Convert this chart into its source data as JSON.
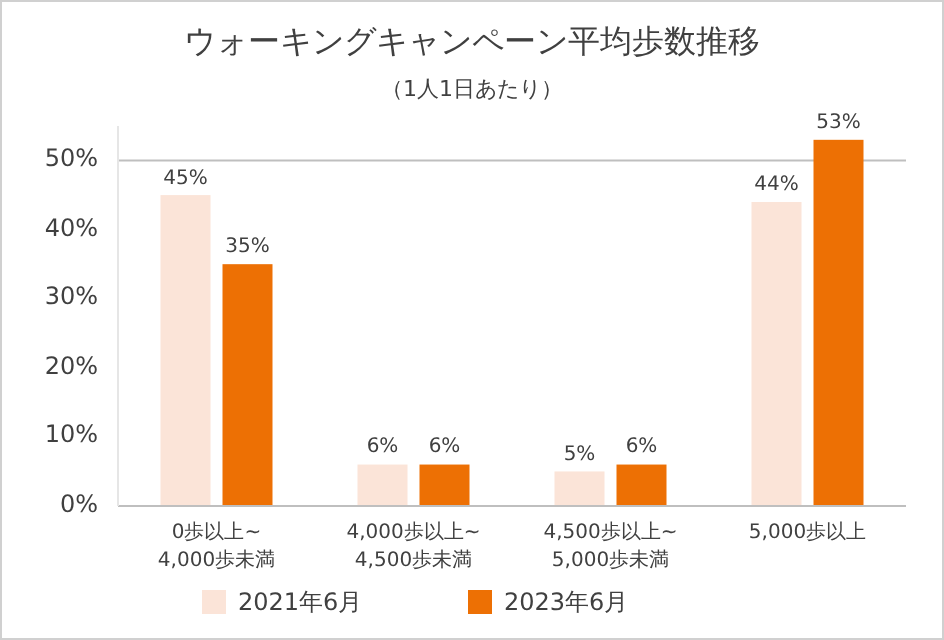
{
  "chart_data": {
    "type": "bar",
    "title": "ウォーキングキャンペーン平均歩数推移",
    "subtitle": "（1人1日あたり）",
    "categories": [
      "0歩以上~\n4,000歩未満",
      "4,000歩以上~\n4,500歩未満",
      "4,500歩以上~\n5,000歩未満",
      "5,000歩以上"
    ],
    "series": [
      {
        "name": "2021年6月",
        "color": "#fbe4d8",
        "values": [
          45,
          6,
          5,
          44
        ],
        "value_labels": [
          "45%",
          "6%",
          "5%",
          "44%"
        ]
      },
      {
        "name": "2023年6月",
        "color": "#ed7004",
        "values": [
          35,
          6,
          6,
          53
        ],
        "value_labels": [
          "35%",
          "6%",
          "6%",
          "53%"
        ]
      }
    ],
    "ylim": [
      0,
      55
    ],
    "yticks": [
      {
        "value": 0,
        "label": "0%"
      },
      {
        "value": 10,
        "label": "10%"
      },
      {
        "value": 20,
        "label": "20%"
      },
      {
        "value": 30,
        "label": "30%"
      },
      {
        "value": 40,
        "label": "40%"
      },
      {
        "value": 50,
        "label": "50%"
      }
    ],
    "ref_lines": [
      {
        "axis": "y",
        "value": 50,
        "color": "#bfbfbf"
      }
    ],
    "legend": "bottom"
  }
}
